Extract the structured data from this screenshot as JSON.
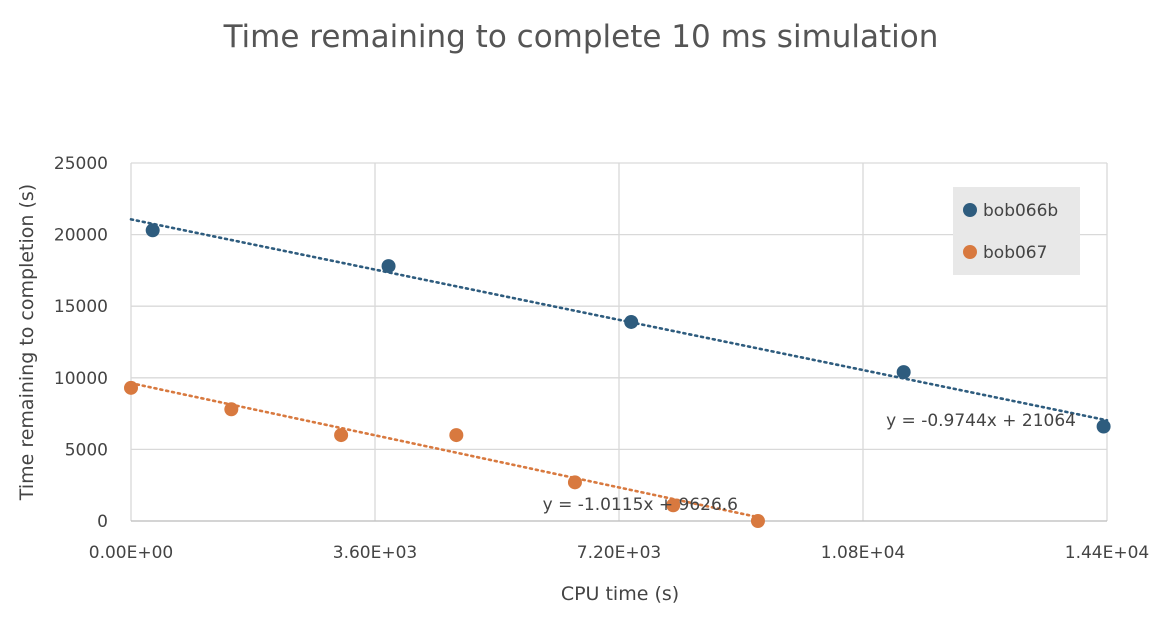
{
  "chart_data": {
    "type": "scatter",
    "title": "Time remaining to complete 10 ms simulation",
    "xlabel": "CPU time (s)",
    "ylabel": "Time remaining to completion (s)",
    "xlim": [
      0,
      14400
    ],
    "ylim": [
      0,
      25000
    ],
    "x_ticks": [
      "0.00E+00",
      "3.60E+03",
      "7.20E+03",
      "1.08E+04",
      "1.44E+04"
    ],
    "x_tick_values": [
      0,
      3600,
      7200,
      10800,
      14400
    ],
    "y_ticks": [
      "0",
      "5000",
      "10000",
      "15000",
      "20000",
      "25000"
    ],
    "y_tick_values": [
      0,
      5000,
      10000,
      15000,
      20000,
      25000
    ],
    "grid": true,
    "legend_position": "top-right",
    "series": [
      {
        "name": "bob066b",
        "color": "#2e5c7e",
        "points": [
          {
            "x": 320,
            "y": 20300
          },
          {
            "x": 3800,
            "y": 17800
          },
          {
            "x": 7380,
            "y": 13900
          },
          {
            "x": 11400,
            "y": 10400
          },
          {
            "x": 14350,
            "y": 6600
          }
        ],
        "trendline": {
          "slope": -0.9744,
          "intercept": 21064,
          "x_range": [
            0,
            14400
          ],
          "equation": "y = -0.9744x + 21064"
        }
      },
      {
        "name": "bob067",
        "color": "#d8793f",
        "points": [
          {
            "x": 0,
            "y": 9300
          },
          {
            "x": 1480,
            "y": 7800
          },
          {
            "x": 3100,
            "y": 6000
          },
          {
            "x": 4800,
            "y": 6000
          },
          {
            "x": 6550,
            "y": 2700
          },
          {
            "x": 8000,
            "y": 1100
          },
          {
            "x": 9250,
            "y": 0
          }
        ],
        "trendline": {
          "slope": -1.0115,
          "intercept": 9626.6,
          "x_range": [
            0,
            9250
          ],
          "equation": "y = -1.0115x + 9626.6"
        }
      }
    ]
  }
}
